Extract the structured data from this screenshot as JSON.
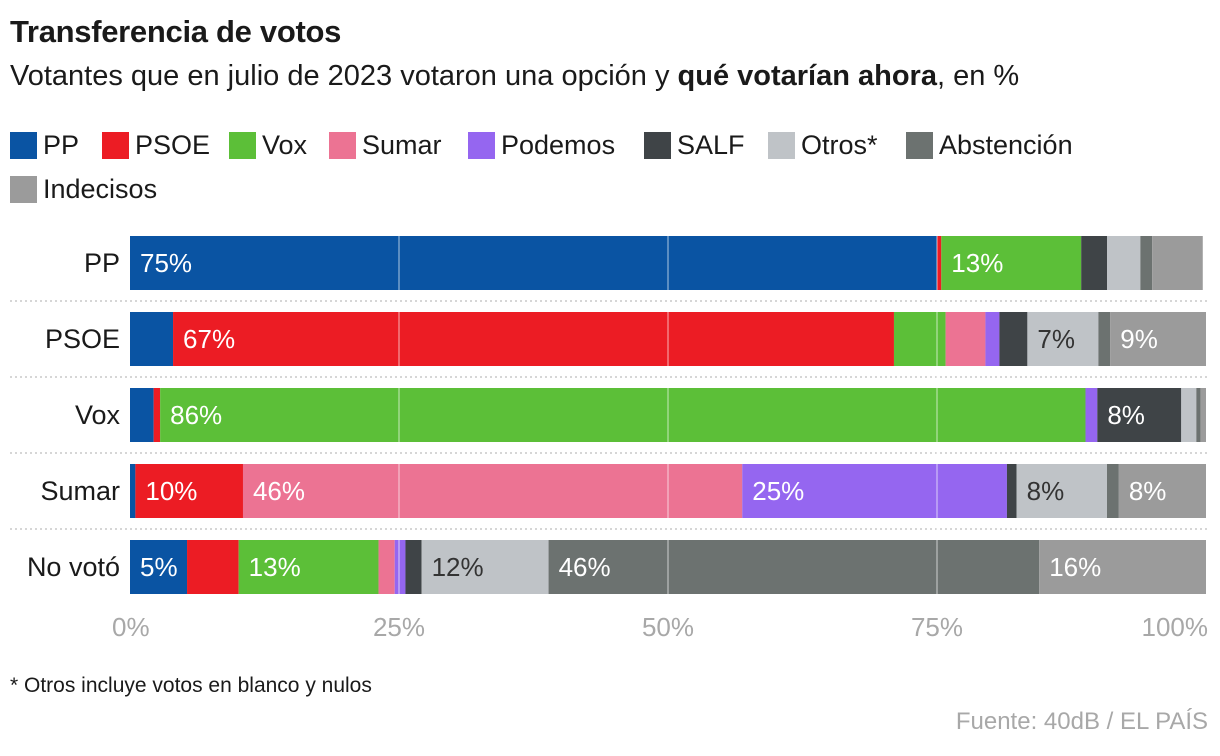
{
  "title": "Transferencia de votos",
  "subtitle": {
    "pre": "Votantes que en julio de 2023 votaron una opción y ",
    "bold": "qué votarían ahora",
    "post": ", en %"
  },
  "legend": [
    {
      "label": "PP",
      "color": "#0a54a3"
    },
    {
      "label": "PSOE",
      "color": "#ec1c24"
    },
    {
      "label": "Vox",
      "color": "#5cbf38"
    },
    {
      "label": "Sumar",
      "color": "#ec7393"
    },
    {
      "label": "Podemos",
      "color": "#9566f0"
    },
    {
      "label": "SALF",
      "color": "#3f4447"
    },
    {
      "label": "Otros*",
      "color": "#bfc3c7"
    },
    {
      "label": "Abstención",
      "color": "#6c7270"
    },
    {
      "label": "Indecisos",
      "color": "#9b9b9b"
    }
  ],
  "chart_data": {
    "type": "bar",
    "orientation": "horizontal",
    "stacked": true,
    "x_range": [
      0,
      100
    ],
    "x_ticks": [
      "0%",
      "25%",
      "50%",
      "75%",
      "100%"
    ],
    "categories": [
      "PP",
      "PSOE",
      "Vox",
      "Sumar",
      "No votó"
    ],
    "series": [
      {
        "name": "PP",
        "values": [
          75,
          4,
          2.2,
          0.5,
          5.3
        ]
      },
      {
        "name": "PSOE",
        "values": [
          0.4,
          67,
          0.6,
          10,
          4.8
        ]
      },
      {
        "name": "Vox",
        "values": [
          13,
          4.8,
          86,
          0,
          13
        ]
      },
      {
        "name": "Sumar",
        "values": [
          0,
          3.7,
          0,
          46.4,
          1.5
        ]
      },
      {
        "name": "Podemos",
        "values": [
          0,
          1.3,
          1.1,
          24.6,
          1
        ]
      },
      {
        "name": "SALF",
        "values": [
          2.4,
          2.6,
          7.8,
          0.9,
          1.5
        ]
      },
      {
        "name": "Otros*",
        "values": [
          3.1,
          6.6,
          1.4,
          8.4,
          11.8
        ]
      },
      {
        "name": "Abstención",
        "values": [
          1.1,
          1.1,
          0.4,
          1.1,
          45.6
        ]
      },
      {
        "name": "Indecisos",
        "values": [
          4.7,
          8.9,
          0.5,
          8.1,
          15.5
        ]
      }
    ],
    "data_labels": [
      [
        "75%",
        "",
        "13%",
        "",
        "",
        "",
        "",
        "",
        ""
      ],
      [
        "",
        "67%",
        "",
        "",
        "",
        "",
        "7%",
        "",
        "9%"
      ],
      [
        "",
        "",
        "86%",
        "",
        "",
        "8%",
        "",
        "",
        ""
      ],
      [
        "",
        "10%",
        "",
        "46%",
        "25%",
        "",
        "8%",
        "",
        "8%"
      ],
      [
        "5%",
        "",
        "13%",
        "",
        "",
        "",
        "12%",
        "46%",
        "16%"
      ]
    ],
    "grid": true
  },
  "footnote": "* Otros incluye votos en blanco y nulos",
  "source": "Fuente: 40dB / EL PAÍS"
}
